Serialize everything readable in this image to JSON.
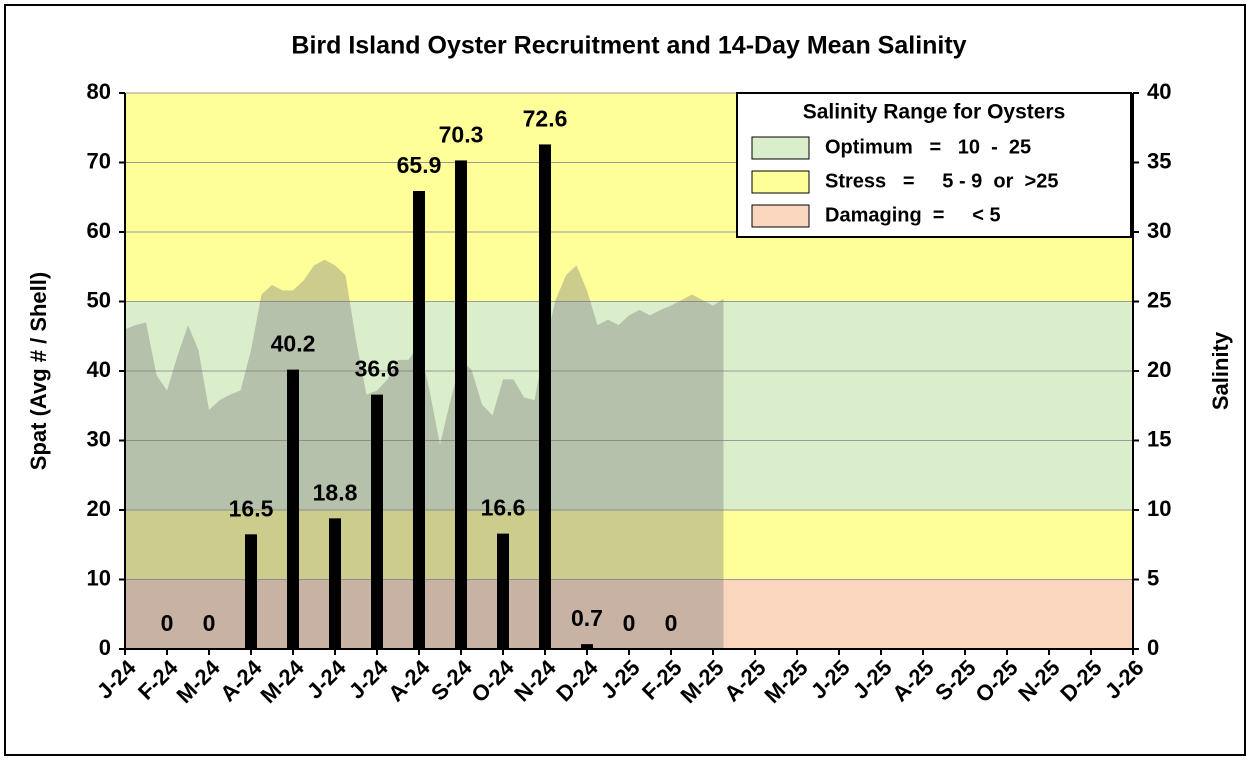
{
  "chart_data": {
    "type": "bar",
    "title": "Bird Island Oyster Recruitment and 14-Day Mean Salinity",
    "y_label": "Spat (Avg # / Shell)",
    "y2_label": "Salinity",
    "categories": [
      "J-24",
      "F-24",
      "M-24",
      "A-24",
      "M-24",
      "J-24",
      "J-24",
      "A-24",
      "S-24",
      "O-24",
      "N-24",
      "D-24",
      "J-25",
      "F-25",
      "M-25",
      "A-25",
      "M-25",
      "J-25",
      "J-25",
      "A-25",
      "S-25",
      "O-25",
      "N-25",
      "D-25",
      "J-26"
    ],
    "series": [
      {
        "name": "Spat",
        "color": "#000000",
        "values": [
          null,
          0,
          0,
          16.5,
          40.2,
          18.8,
          36.6,
          65.9,
          70.3,
          16.6,
          72.6,
          0.7,
          0,
          0,
          null,
          null,
          null,
          null,
          null,
          null,
          null,
          null,
          null,
          null,
          null
        ]
      },
      {
        "name": "Salinity",
        "type": "area",
        "axis": "y2",
        "color": "rgba(120,120,120,0.38)",
        "x": [
          0,
          0.25,
          0.5,
          0.75,
          1,
          1.25,
          1.5,
          1.75,
          2,
          2.25,
          2.5,
          2.75,
          3,
          3.25,
          3.5,
          3.75,
          4,
          4.25,
          4.5,
          4.75,
          5,
          5.25,
          5.5,
          5.75,
          6,
          6.25,
          6.5,
          6.75,
          7,
          7.25,
          7.5,
          7.75,
          8,
          8.25,
          8.5,
          8.75,
          9,
          9.25,
          9.5,
          9.75,
          10,
          10.25,
          10.5,
          10.75,
          11,
          11.25,
          11.5,
          11.75,
          12,
          12.25,
          12.5,
          12.75,
          13,
          13.25,
          13.5,
          13.75,
          14,
          14.25
        ],
        "values": [
          23,
          23.3,
          23.5,
          19.7,
          18.6,
          21.1,
          23.3,
          21.5,
          17.2,
          17.9,
          18.3,
          18.6,
          21.5,
          25.5,
          26.2,
          25.8,
          25.8,
          26.5,
          27.6,
          28,
          27.6,
          26.9,
          22.2,
          18.3,
          18.6,
          19.4,
          20.8,
          20.8,
          21.9,
          18.6,
          14.7,
          17.9,
          20.8,
          20.1,
          17.6,
          16.8,
          19.4,
          19.4,
          18.1,
          17.9,
          21.9,
          25.1,
          26.9,
          27.6,
          25.8,
          23.3,
          23.7,
          23.3,
          24,
          24.4,
          24,
          24.4,
          24.7,
          25.1,
          25.5,
          25.1,
          24.7,
          25.2
        ]
      }
    ],
    "bands": [
      {
        "from": 25,
        "to": 40,
        "color": "#ffff99"
      },
      {
        "from": 10,
        "to": 25,
        "color": "#dbeecb"
      },
      {
        "from": 5,
        "to": 10,
        "color": "#ffff99"
      },
      {
        "from": 0,
        "to": 5,
        "color": "#f9d6bd"
      }
    ],
    "legend": {
      "title": "Salinity Range for Oysters",
      "position": "upper right",
      "entries": [
        {
          "label": "Optimum   =   10  -  25",
          "color": "#dbeecb"
        },
        {
          "label": "Stress   =     5 - 9  or  >25",
          "color": "#ffff99"
        },
        {
          "label": "Damaging  =     < 5",
          "color": "#f9d6bd"
        }
      ]
    },
    "ylim": [
      0,
      80
    ],
    "yticks": [
      0,
      10,
      20,
      30,
      40,
      50,
      60,
      70,
      80
    ],
    "y2lim": [
      0,
      40
    ],
    "y2ticks": [
      0,
      5,
      10,
      15,
      20,
      25,
      30,
      35,
      40
    ],
    "grid": true
  }
}
